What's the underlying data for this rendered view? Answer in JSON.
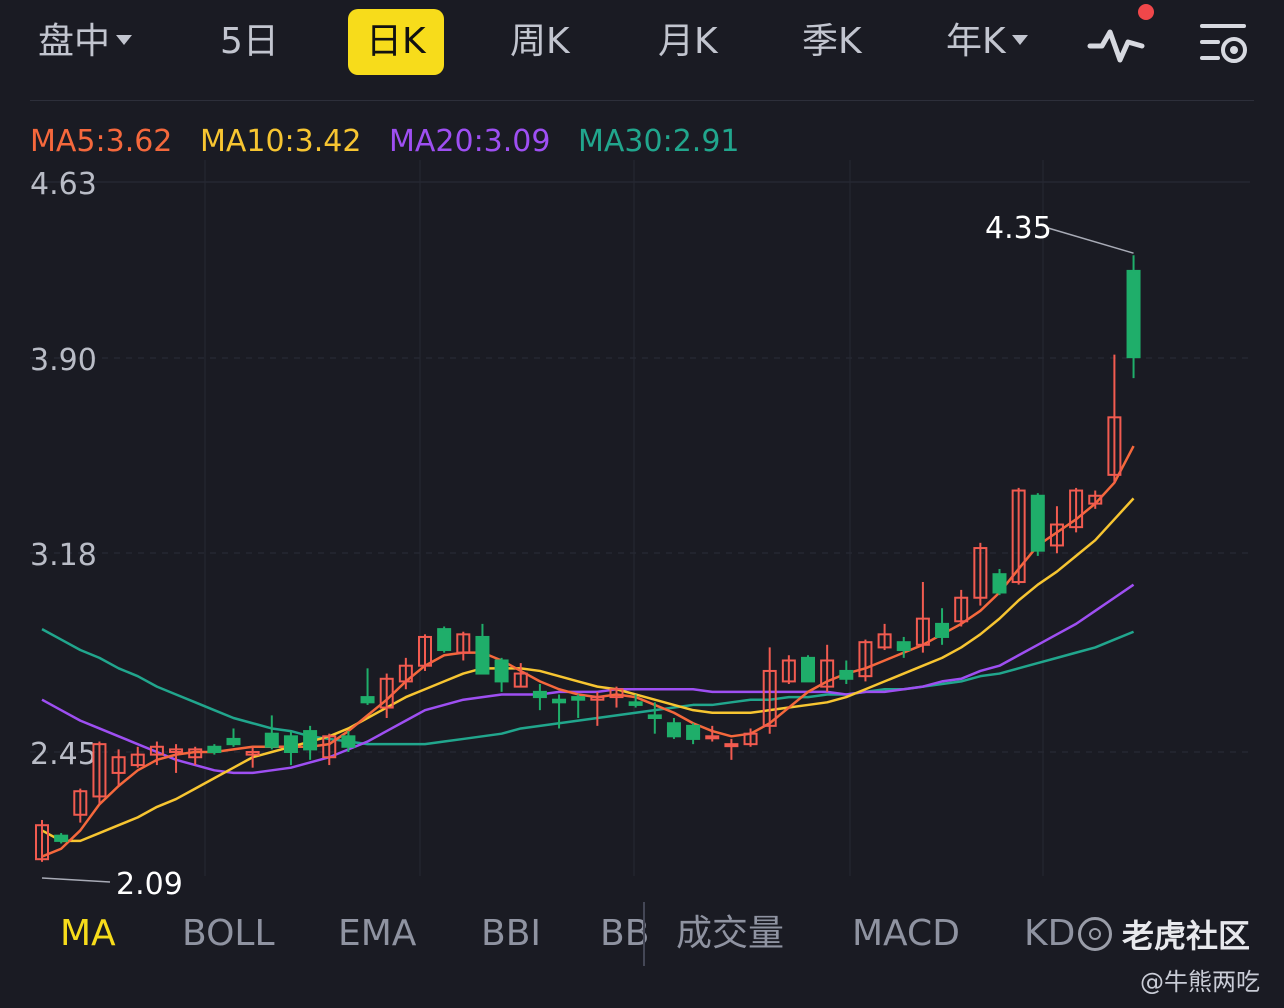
{
  "period_tabs": {
    "intraday": "盘中",
    "five_day": "5日",
    "daily": "日K",
    "weekly": "周K",
    "monthly": "月K",
    "quarterly": "季K",
    "yearly": "年K"
  },
  "toolbar": {
    "indicator_icon": "waveform-icon",
    "settings_icon": "chart-settings-icon",
    "notification_dot_color": "#f0474a"
  },
  "ma_legend": {
    "ma5": "MA5:3.62",
    "ma10": "MA10:3.42",
    "ma20": "MA20:3.09",
    "ma30": "MA30:2.91"
  },
  "colors": {
    "ma5": "#f5683c",
    "ma10": "#f7c531",
    "ma20": "#9e4ff2",
    "ma30": "#21a68d",
    "up": "#f25b50",
    "down": "#1fae6a",
    "accent": "#f7dc1b"
  },
  "y_axis": {
    "ticks": [
      "4.63",
      "3.90",
      "3.18",
      "2.45"
    ],
    "high_marker": "4.35",
    "low_marker_partial": "2.09"
  },
  "chart_data": {
    "type": "candlestick",
    "y_ticks": [
      4.63,
      3.9,
      3.18,
      2.45
    ],
    "ylim": [
      2.09,
      4.63
    ],
    "high_label": 4.35,
    "candles": [
      [
        2.04,
        2.17,
        2.19,
        2.03
      ],
      [
        2.13,
        2.11,
        2.14,
        2.1
      ],
      [
        2.21,
        2.3,
        2.31,
        2.18
      ],
      [
        2.28,
        2.48,
        2.49,
        2.25
      ],
      [
        2.37,
        2.43,
        2.46,
        2.32
      ],
      [
        2.4,
        2.44,
        2.47,
        2.39
      ],
      [
        2.44,
        2.47,
        2.49,
        2.4
      ],
      [
        2.45,
        2.46,
        2.48,
        2.37
      ],
      [
        2.43,
        2.46,
        2.47,
        2.4
      ],
      [
        2.47,
        2.45,
        2.48,
        2.44
      ],
      [
        2.5,
        2.48,
        2.54,
        2.47
      ],
      [
        2.44,
        2.45,
        2.47,
        2.39
      ],
      [
        2.52,
        2.47,
        2.59,
        2.46
      ],
      [
        2.51,
        2.45,
        2.53,
        2.4
      ],
      [
        2.53,
        2.46,
        2.55,
        2.42
      ],
      [
        2.43,
        2.51,
        2.52,
        2.4
      ],
      [
        2.51,
        2.47,
        2.53,
        2.45
      ],
      [
        2.66,
        2.64,
        2.77,
        2.63
      ],
      [
        2.62,
        2.73,
        2.75,
        2.58
      ],
      [
        2.72,
        2.78,
        2.81,
        2.69
      ],
      [
        2.78,
        2.89,
        2.9,
        2.76
      ],
      [
        2.92,
        2.84,
        2.93,
        2.83
      ],
      [
        2.83,
        2.9,
        2.91,
        2.8
      ],
      [
        2.89,
        2.75,
        2.94,
        2.75
      ],
      [
        2.8,
        2.72,
        2.81,
        2.68
      ],
      [
        2.7,
        2.75,
        2.79,
        2.7
      ],
      [
        2.68,
        2.66,
        2.71,
        2.61
      ],
      [
        2.65,
        2.64,
        2.67,
        2.54
      ],
      [
        2.66,
        2.65,
        2.67,
        2.58
      ],
      [
        2.65,
        2.66,
        2.68,
        2.55
      ],
      [
        2.66,
        2.69,
        2.7,
        2.62
      ],
      [
        2.64,
        2.63,
        2.67,
        2.62
      ],
      [
        2.59,
        2.58,
        2.64,
        2.52
      ],
      [
        2.56,
        2.51,
        2.58,
        2.5
      ],
      [
        2.55,
        2.5,
        2.56,
        2.48
      ],
      [
        2.51,
        2.51,
        2.55,
        2.49
      ],
      [
        2.48,
        2.48,
        2.5,
        2.42
      ],
      [
        2.48,
        2.52,
        2.54,
        2.47
      ],
      [
        2.55,
        2.76,
        2.85,
        2.52
      ],
      [
        2.72,
        2.8,
        2.82,
        2.71
      ],
      [
        2.81,
        2.72,
        2.82,
        2.72
      ],
      [
        2.7,
        2.8,
        2.86,
        2.68
      ],
      [
        2.76,
        2.73,
        2.8,
        2.71
      ],
      [
        2.74,
        2.87,
        2.88,
        2.72
      ],
      [
        2.85,
        2.9,
        2.94,
        2.84
      ],
      [
        2.87,
        2.84,
        2.89,
        2.81
      ],
      [
        2.86,
        2.96,
        3.1,
        2.83
      ],
      [
        2.94,
        2.89,
        3.0,
        2.86
      ],
      [
        2.95,
        3.04,
        3.07,
        2.93
      ],
      [
        3.04,
        3.23,
        3.25,
        3.01
      ],
      [
        3.13,
        3.06,
        3.15,
        3.05
      ],
      [
        3.1,
        3.45,
        3.46,
        3.09
      ],
      [
        3.43,
        3.22,
        3.44,
        3.2
      ],
      [
        3.24,
        3.32,
        3.39,
        3.21
      ],
      [
        3.31,
        3.45,
        3.46,
        3.29
      ],
      [
        3.4,
        3.43,
        3.45,
        3.38
      ],
      [
        3.51,
        3.73,
        3.97,
        3.48
      ],
      [
        4.29,
        3.96,
        4.35,
        3.88
      ]
    ],
    "candle_format": [
      "open",
      "close",
      "high",
      "low"
    ],
    "ma_series": {
      "MA5": [
        2.05,
        2.08,
        2.15,
        2.25,
        2.32,
        2.38,
        2.42,
        2.44,
        2.45,
        2.45,
        2.46,
        2.47,
        2.47,
        2.47,
        2.47,
        2.48,
        2.53,
        2.59,
        2.65,
        2.72,
        2.78,
        2.82,
        2.83,
        2.83,
        2.8,
        2.76,
        2.72,
        2.69,
        2.67,
        2.66,
        2.67,
        2.66,
        2.63,
        2.6,
        2.56,
        2.53,
        2.51,
        2.52,
        2.56,
        2.62,
        2.68,
        2.72,
        2.75,
        2.77,
        2.8,
        2.83,
        2.86,
        2.9,
        2.94,
        2.99,
        3.06,
        3.15,
        3.24,
        3.29,
        3.34,
        3.4,
        3.48,
        3.62
      ],
      "MA10": [
        2.15,
        2.11,
        2.11,
        2.14,
        2.17,
        2.2,
        2.24,
        2.27,
        2.31,
        2.35,
        2.39,
        2.43,
        2.45,
        2.47,
        2.49,
        2.51,
        2.54,
        2.58,
        2.62,
        2.66,
        2.69,
        2.72,
        2.75,
        2.77,
        2.77,
        2.77,
        2.76,
        2.74,
        2.72,
        2.7,
        2.69,
        2.67,
        2.65,
        2.63,
        2.61,
        2.6,
        2.6,
        2.6,
        2.61,
        2.62,
        2.63,
        2.64,
        2.66,
        2.69,
        2.72,
        2.75,
        2.78,
        2.81,
        2.85,
        2.9,
        2.96,
        3.03,
        3.09,
        3.14,
        3.2,
        3.26,
        3.34,
        3.42
      ],
      "MA20": [
        2.65,
        2.61,
        2.57,
        2.54,
        2.51,
        2.48,
        2.45,
        2.42,
        2.4,
        2.38,
        2.37,
        2.37,
        2.38,
        2.39,
        2.41,
        2.43,
        2.46,
        2.49,
        2.53,
        2.57,
        2.61,
        2.63,
        2.65,
        2.66,
        2.67,
        2.67,
        2.67,
        2.68,
        2.68,
        2.68,
        2.69,
        2.69,
        2.69,
        2.69,
        2.69,
        2.68,
        2.68,
        2.68,
        2.68,
        2.68,
        2.68,
        2.68,
        2.67,
        2.68,
        2.68,
        2.69,
        2.7,
        2.72,
        2.73,
        2.76,
        2.78,
        2.82,
        2.86,
        2.9,
        2.94,
        2.99,
        3.04,
        3.09
      ],
      "MA30": [
        2.92,
        2.88,
        2.84,
        2.81,
        2.77,
        2.74,
        2.7,
        2.67,
        2.64,
        2.61,
        2.58,
        2.56,
        2.54,
        2.53,
        2.51,
        2.5,
        2.49,
        2.48,
        2.48,
        2.48,
        2.48,
        2.49,
        2.5,
        2.51,
        2.52,
        2.54,
        2.55,
        2.56,
        2.57,
        2.58,
        2.59,
        2.6,
        2.61,
        2.62,
        2.63,
        2.63,
        2.64,
        2.65,
        2.65,
        2.66,
        2.66,
        2.67,
        2.67,
        2.68,
        2.69,
        2.69,
        2.7,
        2.71,
        2.72,
        2.74,
        2.75,
        2.77,
        2.79,
        2.81,
        2.83,
        2.85,
        2.88,
        2.91
      ]
    },
    "grid": true
  },
  "indicators": {
    "ma": "MA",
    "boll": "BOLL",
    "ema": "EMA",
    "bbi": "BBI",
    "bb_partial": "BB",
    "volume": "成交量",
    "macd": "MACD",
    "kdj_partial": "KD"
  },
  "watermark": {
    "logo_icon": "tiger-logo-icon",
    "brand": "老虎社区",
    "author": "@牛熊两吃"
  }
}
